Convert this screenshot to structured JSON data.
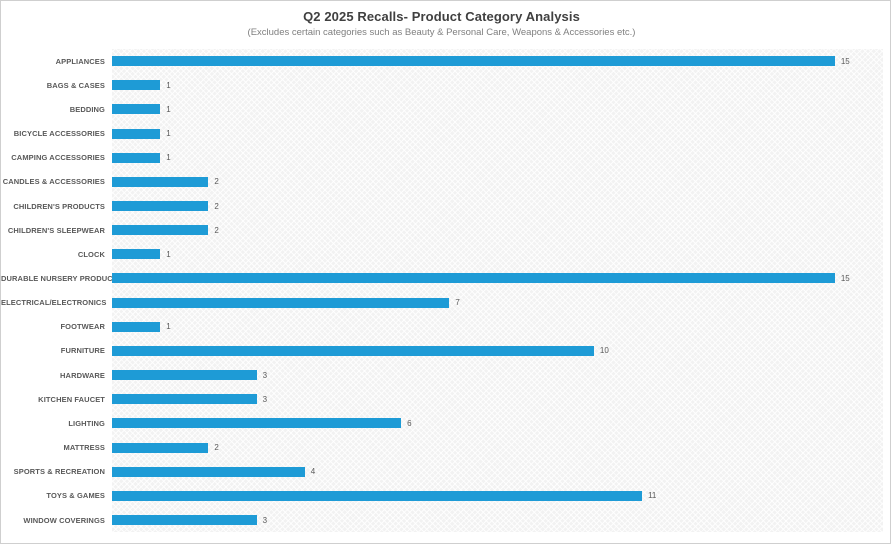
{
  "chart_data": {
    "type": "bar",
    "orientation": "horizontal",
    "title": "Q2 2025 Recalls- Product Category Analysis",
    "subtitle": "(Excludes certain categories such as Beauty & Personal Care, Weapons & Accessories etc.)",
    "categories": [
      "APPLIANCES",
      "BAGS & CASES",
      "BEDDING",
      "BICYCLE ACCESSORIES",
      "CAMPING ACCESSORIES",
      "CANDLES & ACCESSORIES",
      "CHILDREN'S PRODUCTS",
      "CHILDREN'S SLEEPWEAR",
      "CLOCK",
      "DURABLE NURSERY PRODUCT",
      "ELECTRICAL/ELECTRONICS",
      "FOOTWEAR",
      "FURNITURE",
      "HARDWARE",
      "KITCHEN FAUCET",
      "LIGHTING",
      "MATTRESS",
      "SPORTS & RECREATION",
      "TOYS & GAMES",
      "WINDOW COVERINGS"
    ],
    "values": [
      15,
      1,
      1,
      1,
      1,
      2,
      2,
      2,
      1,
      15,
      7,
      1,
      10,
      3,
      3,
      6,
      2,
      4,
      11,
      3
    ],
    "xlabel": "",
    "ylabel": "",
    "xlim": [
      0,
      16
    ],
    "grid": false,
    "legend": false,
    "value_labels_shown": true,
    "bar_color": "#1e9bd6",
    "label_color": "#595959",
    "title_color": "#404040",
    "subtitle_color": "#7f7f7f"
  }
}
